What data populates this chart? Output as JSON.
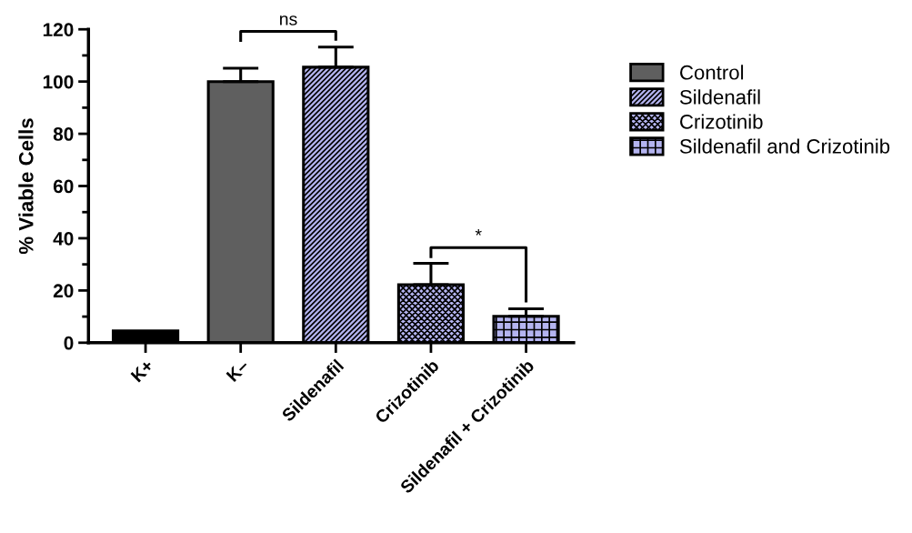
{
  "chart_data": {
    "type": "bar",
    "stacked": true,
    "ylabel": "% Viable Cells",
    "categories": [
      "K+",
      "K–",
      "Sildenafil",
      "Crizotinib",
      "Sildenafil + Crizotinib"
    ],
    "series": [
      {
        "name": "Control",
        "color": "#5f5f5f",
        "colors": [
          "#000000",
          "#5f5f5f",
          null,
          null,
          null
        ],
        "values": [
          4.5,
          100,
          null,
          null,
          null
        ],
        "errors": [
          null,
          [
            100,
            105.1
          ],
          null,
          null,
          null
        ]
      },
      {
        "name": "Sildenafil",
        "color": "#b4b4f0",
        "values": [
          null,
          null,
          105.5,
          null,
          null
        ],
        "errors": [
          null,
          null,
          [
            105.5,
            113.2
          ],
          null,
          null
        ]
      },
      {
        "name": "Crizotinib",
        "color": "#b4b4f0",
        "values": [
          null,
          null,
          null,
          22.2,
          null
        ],
        "errors": [
          null,
          null,
          null,
          [
            22.2,
            30.4
          ],
          null
        ]
      },
      {
        "name": "Sildenafil and Crizotinib",
        "color": "#b4b4f0",
        "values": [
          null,
          null,
          null,
          null,
          10.1
        ],
        "errors": [
          null,
          null,
          null,
          null,
          [
            10.1,
            13.0
          ]
        ]
      }
    ],
    "ylim": [
      0,
      120
    ],
    "yticks": [
      0,
      20,
      40,
      60,
      80,
      100,
      120
    ],
    "annotations": [
      "ns",
      "*"
    ],
    "legend": "right",
    "grid": false
  }
}
